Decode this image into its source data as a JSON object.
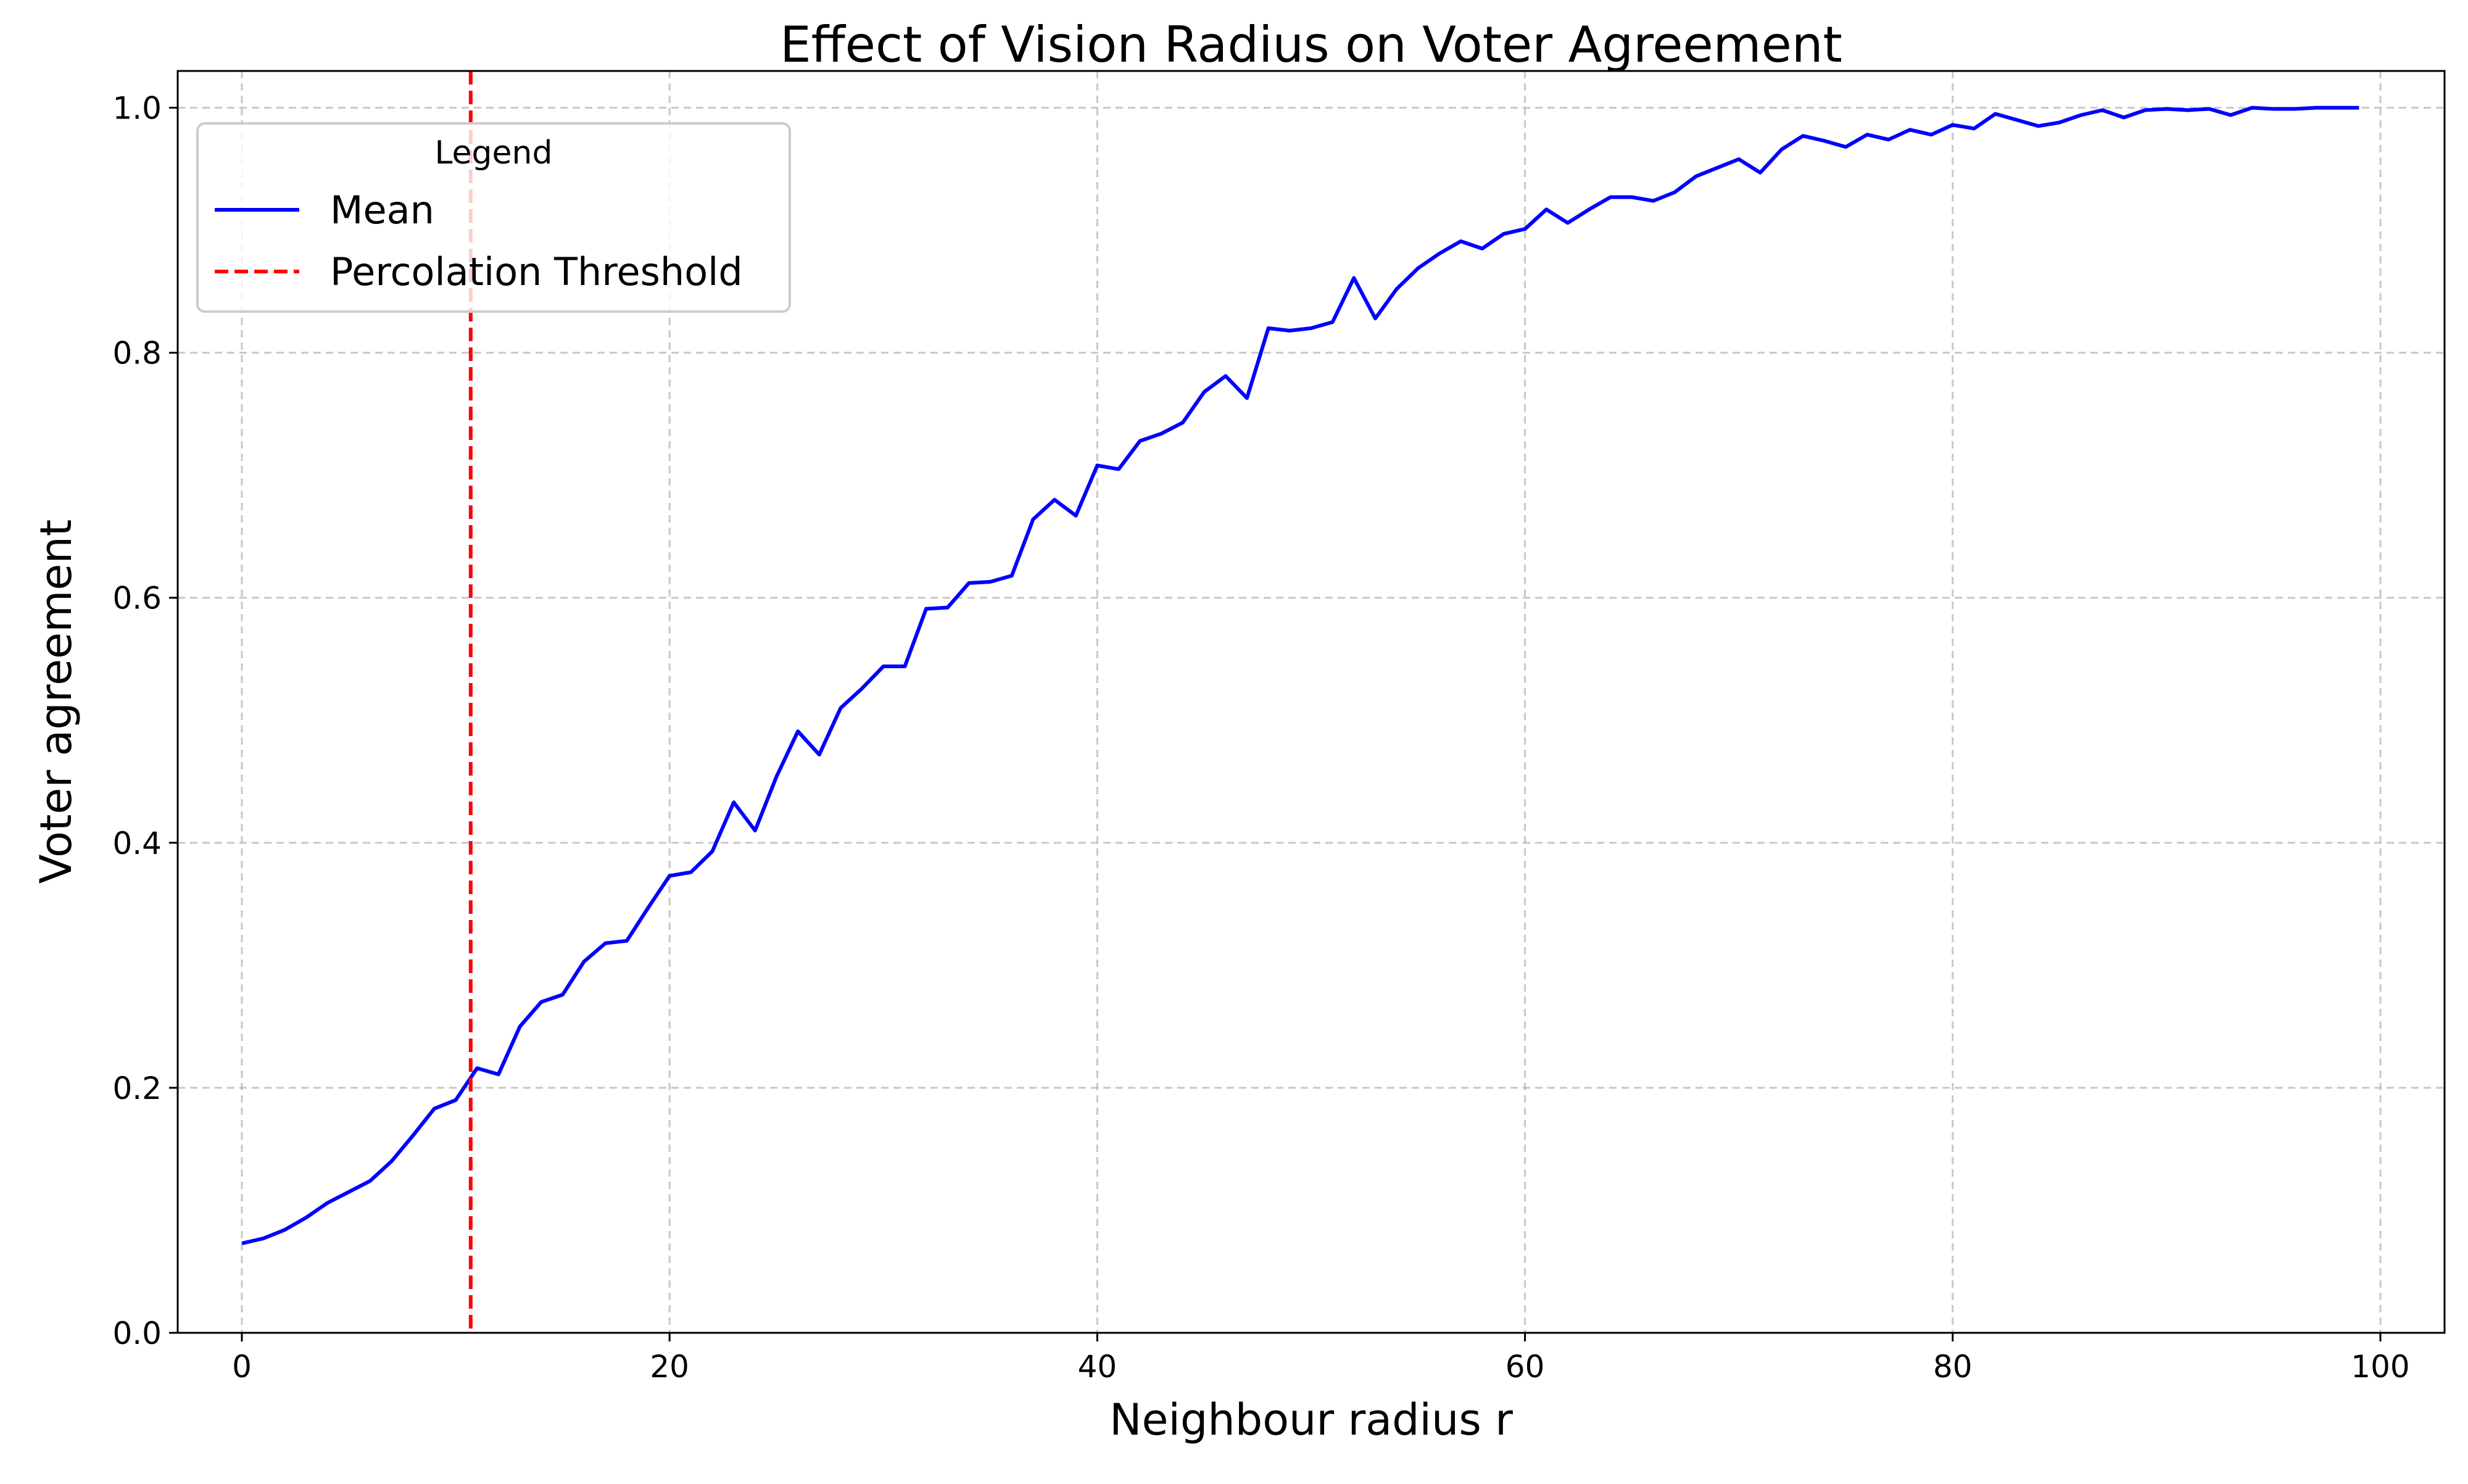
{
  "chart_data": {
    "type": "line",
    "title": "Effect of Vision Radius on Voter Agreement",
    "xlabel": "Neighbour radius r",
    "ylabel": "Voter agreement",
    "xlim": [
      -3,
      103
    ],
    "ylim": [
      0,
      1.03
    ],
    "xticks": [
      0,
      20,
      40,
      60,
      80,
      100
    ],
    "yticks": [
      0.0,
      0.2,
      0.4,
      0.6,
      0.8,
      1.0
    ],
    "xtick_labels": [
      "0",
      "20",
      "40",
      "60",
      "80",
      "100"
    ],
    "ytick_labels": [
      "0.0",
      "0.2",
      "0.4",
      "0.6",
      "0.8",
      "1.0"
    ],
    "grid": true,
    "legend": {
      "title": "Legend",
      "position": "top-left"
    },
    "series": [
      {
        "name": "Mean",
        "color": "#0000ff",
        "style": "solid",
        "x": [
          0,
          1,
          2,
          3,
          4,
          5,
          6,
          7,
          8,
          9,
          10,
          11,
          12,
          13,
          14,
          15,
          16,
          17,
          18,
          19,
          20,
          21,
          22,
          23,
          24,
          25,
          26,
          27,
          28,
          29,
          30,
          31,
          32,
          33,
          34,
          35,
          36,
          37,
          38,
          39,
          40,
          41,
          42,
          43,
          44,
          45,
          46,
          47,
          48,
          49,
          50,
          51,
          52,
          53,
          54,
          55,
          56,
          57,
          58,
          59,
          60,
          61,
          62,
          63,
          64,
          65,
          66,
          67,
          68,
          69,
          70,
          71,
          72,
          73,
          74,
          75,
          76,
          77,
          78,
          79,
          80,
          81,
          82,
          83,
          84,
          85,
          86,
          87,
          88,
          89,
          90,
          91,
          92,
          93,
          94,
          95,
          96,
          97,
          98,
          99
        ],
        "values": [
          0.073,
          0.077,
          0.084,
          0.094,
          0.106,
          0.115,
          0.124,
          0.14,
          0.161,
          0.183,
          0.19,
          0.216,
          0.211,
          0.25,
          0.27,
          0.276,
          0.303,
          0.318,
          0.32,
          0.347,
          0.373,
          0.376,
          0.393,
          0.433,
          0.41,
          0.454,
          0.491,
          0.472,
          0.51,
          0.526,
          0.544,
          0.544,
          0.591,
          0.592,
          0.612,
          0.613,
          0.618,
          0.664,
          0.68,
          0.667,
          0.708,
          0.705,
          0.728,
          0.734,
          0.743,
          0.768,
          0.781,
          0.763,
          0.82,
          0.818,
          0.82,
          0.825,
          0.861,
          0.828,
          0.852,
          0.869,
          0.881,
          0.891,
          0.885,
          0.897,
          0.901,
          0.917,
          0.906,
          0.917,
          0.927,
          0.927,
          0.924,
          0.931,
          0.944,
          0.951,
          0.958,
          0.947,
          0.966,
          0.977,
          0.973,
          0.968,
          0.978,
          0.974,
          0.982,
          0.978,
          0.986,
          0.983,
          0.995,
          0.99,
          0.985,
          0.988,
          0.994,
          0.998,
          0.992,
          0.998,
          0.999,
          0.998,
          0.999,
          0.994,
          1.0,
          0.999,
          0.999,
          1.0,
          1.0,
          1.0
        ]
      },
      {
        "name": "Percolation Threshold",
        "color": "#ff0000",
        "style": "dashed",
        "vline_x": 10.7
      }
    ]
  }
}
